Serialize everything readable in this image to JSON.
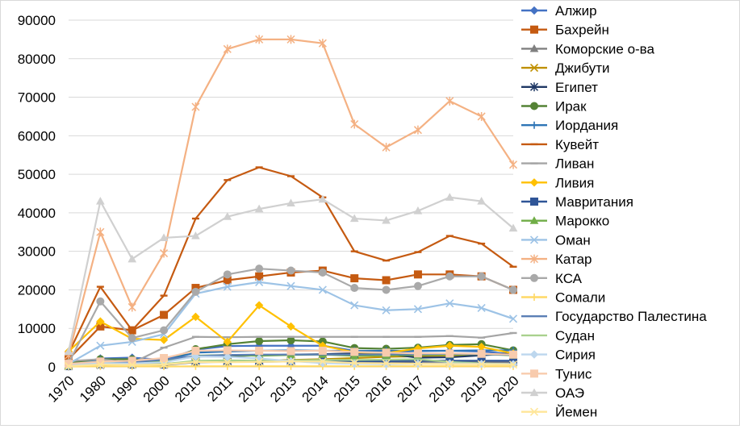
{
  "chart_data": {
    "type": "line",
    "title": "",
    "xlabel": "",
    "ylabel": "",
    "ylim": [
      0,
      90000
    ],
    "yticks": [
      0,
      10000,
      20000,
      30000,
      40000,
      50000,
      60000,
      70000,
      80000,
      90000
    ],
    "grid": true,
    "legend_position": "right",
    "categories": [
      "1970",
      "1980",
      "1990",
      "2000",
      "2010",
      "2011",
      "2012",
      "2013",
      "2014",
      "2015",
      "2016",
      "2017",
      "2018",
      "2019",
      "2020"
    ],
    "series": [
      {
        "name": "Алжир",
        "color": "#4472C4",
        "marker": "diamond",
        "values": [
          300,
          2200,
          2400,
          1800,
          4500,
          5400,
          5500,
          5500,
          5500,
          4200,
          3900,
          4100,
          4200,
          4000,
          3300
        ]
      },
      {
        "name": "Бахрейн",
        "color": "#C55A11",
        "marker": "square",
        "values": [
          2000,
          10500,
          9500,
          13500,
          20500,
          22500,
          23500,
          24500,
          25000,
          23000,
          22500,
          24000,
          24000,
          23500,
          20000
        ]
      },
      {
        "name": "Коморские о-ва",
        "color": "#808080",
        "marker": "triangle",
        "values": [
          150,
          600,
          600,
          500,
          1200,
          1300,
          1300,
          1400,
          1400,
          1200,
          1200,
          1300,
          1300,
          1300,
          1200
        ]
      },
      {
        "name": "Джибути",
        "color": "#BF9000",
        "marker": "x",
        "values": [
          400,
          500,
          700,
          800,
          1300,
          1400,
          1600,
          1800,
          2000,
          2300,
          2600,
          2800,
          3000,
          3200,
          3400
        ]
      },
      {
        "name": "Египет",
        "color": "#1F3864",
        "marker": "star",
        "values": [
          250,
          500,
          800,
          1500,
          2700,
          2800,
          3000,
          3200,
          3300,
          3500,
          3400,
          2400,
          2500,
          3000,
          3500
        ]
      },
      {
        "name": "Ирак",
        "color": "#548235",
        "marker": "circle",
        "values": [
          1000,
          2000,
          2000,
          1200,
          4600,
          5900,
          6700,
          6900,
          6600,
          4900,
          4700,
          5000,
          5700,
          5900,
          4300
        ]
      },
      {
        "name": "Иордания",
        "color": "#2E75B6",
        "marker": "plus",
        "values": [
          500,
          1700,
          1200,
          1700,
          3700,
          4000,
          4200,
          4300,
          4200,
          4200,
          4200,
          4200,
          4200,
          4300,
          4300
        ]
      },
      {
        "name": "Кувейт",
        "color": "#C55A11",
        "marker": "dash",
        "values": [
          3500,
          20800,
          9500,
          18500,
          38500,
          48500,
          51800,
          49500,
          44000,
          30000,
          27600,
          29800,
          34000,
          32000,
          26000
        ]
      },
      {
        "name": "Ливан",
        "color": "#A5A5A5",
        "marker": "dash",
        "values": [
          1500,
          2000,
          1000,
          5000,
          7800,
          7700,
          7800,
          7800,
          7800,
          7800,
          7800,
          7800,
          8000,
          7600,
          8800
        ]
      },
      {
        "name": "Ливия",
        "color": "#FFC000",
        "marker": "diamond",
        "values": [
          4000,
          11800,
          7300,
          7000,
          13000,
          6500,
          16000,
          10500,
          5500,
          3800,
          3600,
          4800,
          5500,
          5200,
          3500
        ]
      },
      {
        "name": "Мавритания",
        "color": "#2F5597",
        "marker": "square",
        "values": [
          200,
          700,
          600,
          600,
          1400,
          1500,
          1500,
          1500,
          1500,
          1500,
          1500,
          1600,
          1600,
          1600,
          1600
        ]
      },
      {
        "name": "Марокко",
        "color": "#70AD47",
        "marker": "triangle",
        "values": [
          300,
          1000,
          1000,
          1400,
          2900,
          3100,
          2900,
          3100,
          3200,
          2900,
          3000,
          3100,
          3200,
          3300,
          3000
        ]
      },
      {
        "name": "Оман",
        "color": "#9DC3E6",
        "marker": "x",
        "values": [
          800,
          5500,
          6500,
          8500,
          19000,
          20800,
          22000,
          21000,
          20000,
          16000,
          14700,
          15000,
          16500,
          15300,
          12500
        ]
      },
      {
        "name": "Катар",
        "color": "#F4B183",
        "marker": "star",
        "values": [
          3000,
          35000,
          15500,
          29500,
          67500,
          82500,
          85000,
          85000,
          84000,
          63000,
          57000,
          61500,
          69000,
          65000,
          52500
        ]
      },
      {
        "name": "КСА",
        "color": "#A9A9A9",
        "marker": "circle",
        "values": [
          1000,
          17000,
          7500,
          9500,
          19500,
          24000,
          25500,
          25000,
          24500,
          20500,
          20000,
          21000,
          23500,
          23500,
          20000
        ]
      },
      {
        "name": "Сомали",
        "color": "#FFD966",
        "marker": "plus",
        "values": [
          100,
          150,
          150,
          100,
          150,
          150,
          150,
          150,
          150,
          150,
          150,
          150,
          150,
          150,
          150
        ]
      },
      {
        "name": "Государство Палестина",
        "color": "#5B7FB5",
        "marker": "none",
        "values": [
          500,
          800,
          1200,
          1900,
          2800,
          3100,
          3200,
          3200,
          3200,
          3200,
          3300,
          3300,
          3400,
          3300,
          3100
        ]
      },
      {
        "name": "Судан",
        "color": "#A9D18E",
        "marker": "none",
        "values": [
          500,
          800,
          600,
          700,
          1600,
          1700,
          1600,
          1700,
          1800,
          1800,
          1900,
          2000,
          1300,
          900,
          700
        ]
      },
      {
        "name": "Сирия",
        "color": "#BDD7EE",
        "marker": "diamond",
        "values": [
          500,
          1000,
          900,
          1200,
          2700,
          2600,
          2200,
          1500,
          1000,
          800,
          700,
          800,
          900,
          800,
          700
        ]
      },
      {
        "name": "Тунис",
        "color": "#F8CBAD",
        "marker": "square",
        "values": [
          800,
          1400,
          1600,
          2300,
          4200,
          4300,
          4200,
          4100,
          4200,
          3900,
          3700,
          3500,
          3500,
          3400,
          3200
        ]
      },
      {
        "name": "ОАЭ",
        "color": "#D0D0D0",
        "marker": "triangle",
        "values": [
          4000,
          43000,
          28000,
          33500,
          34000,
          39000,
          41000,
          42500,
          43500,
          38500,
          38000,
          40500,
          44000,
          43000,
          36000
        ]
      },
      {
        "name": "Йемен",
        "color": "#FFE699",
        "marker": "x",
        "values": [
          200,
          600,
          500,
          600,
          1300,
          1200,
          1300,
          1400,
          1400,
          1000,
          900,
          800,
          700,
          700,
          600
        ]
      }
    ]
  }
}
